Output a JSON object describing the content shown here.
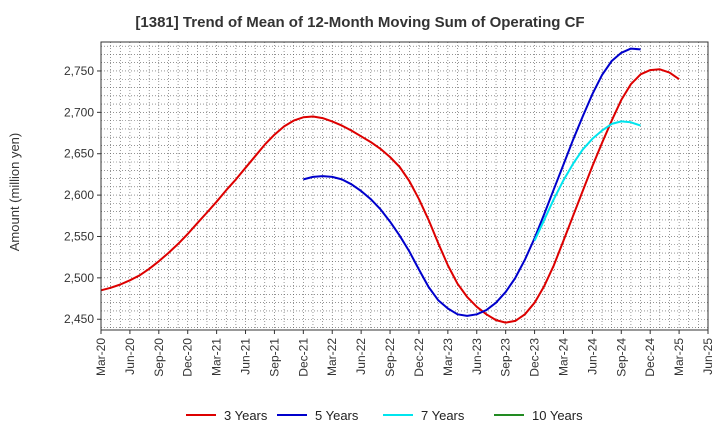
{
  "chart_data": {
    "type": "line",
    "title": "[1381]  Trend of Mean of 12-Month Moving Sum of Operating CF",
    "xlabel": "",
    "ylabel": "Amount (million yen)",
    "ylim": [
      2437,
      2785
    ],
    "yticks": [
      2450,
      2500,
      2550,
      2600,
      2650,
      2700,
      2750
    ],
    "ytick_labels": [
      "2,450",
      "2,500",
      "2,550",
      "2,600",
      "2,650",
      "2,700",
      "2,750"
    ],
    "grid": true,
    "legend_position": "bottom",
    "x_start": "Mar-20",
    "x_tick_labels": [
      "Mar-20",
      "Jun-20",
      "Sep-20",
      "Dec-20",
      "Mar-21",
      "Jun-21",
      "Sep-21",
      "Dec-21",
      "Mar-22",
      "Jun-22",
      "Sep-22",
      "Dec-22",
      "Mar-23",
      "Jun-23",
      "Sep-23",
      "Dec-23",
      "Mar-24",
      "Jun-24",
      "Sep-24",
      "Dec-24",
      "Mar-25",
      "Jun-25"
    ],
    "series": [
      {
        "name": "3 Years",
        "color": "#dd0000",
        "start_index": 0,
        "values": [
          2485,
          2488,
          2492,
          2497,
          2503,
          2511,
          2520,
          2530,
          2541,
          2553,
          2566,
          2579,
          2592,
          2606,
          2619,
          2633,
          2647,
          2661,
          2673,
          2683,
          2690,
          2694,
          2695,
          2693,
          2689,
          2684,
          2678,
          2671,
          2664,
          2656,
          2646,
          2634,
          2617,
          2595,
          2570,
          2542,
          2515,
          2493,
          2477,
          2465,
          2456,
          2449,
          2446,
          2448,
          2456,
          2470,
          2490,
          2515,
          2545,
          2575,
          2605,
          2635,
          2663,
          2690,
          2715,
          2734,
          2746,
          2751,
          2752,
          2748,
          2740
        ]
      },
      {
        "name": "5 Years",
        "color": "#0000cc",
        "start_index": 21,
        "values": [
          2619,
          2622,
          2623,
          2622,
          2619,
          2613,
          2605,
          2595,
          2583,
          2568,
          2551,
          2532,
          2510,
          2489,
          2473,
          2463,
          2456,
          2454,
          2456,
          2461,
          2470,
          2483,
          2500,
          2522,
          2548,
          2577,
          2607,
          2637,
          2667,
          2695,
          2722,
          2745,
          2762,
          2772,
          2777,
          2776
        ]
      },
      {
        "name": "7 Years",
        "color": "#00e5ee",
        "start_index": 45,
        "values": [
          2545,
          2570,
          2595,
          2618,
          2638,
          2655,
          2668,
          2678,
          2686,
          2689,
          2688,
          2684
        ]
      },
      {
        "name": "10 Years",
        "color": "#228b22",
        "start_index": 0,
        "values": []
      }
    ]
  }
}
